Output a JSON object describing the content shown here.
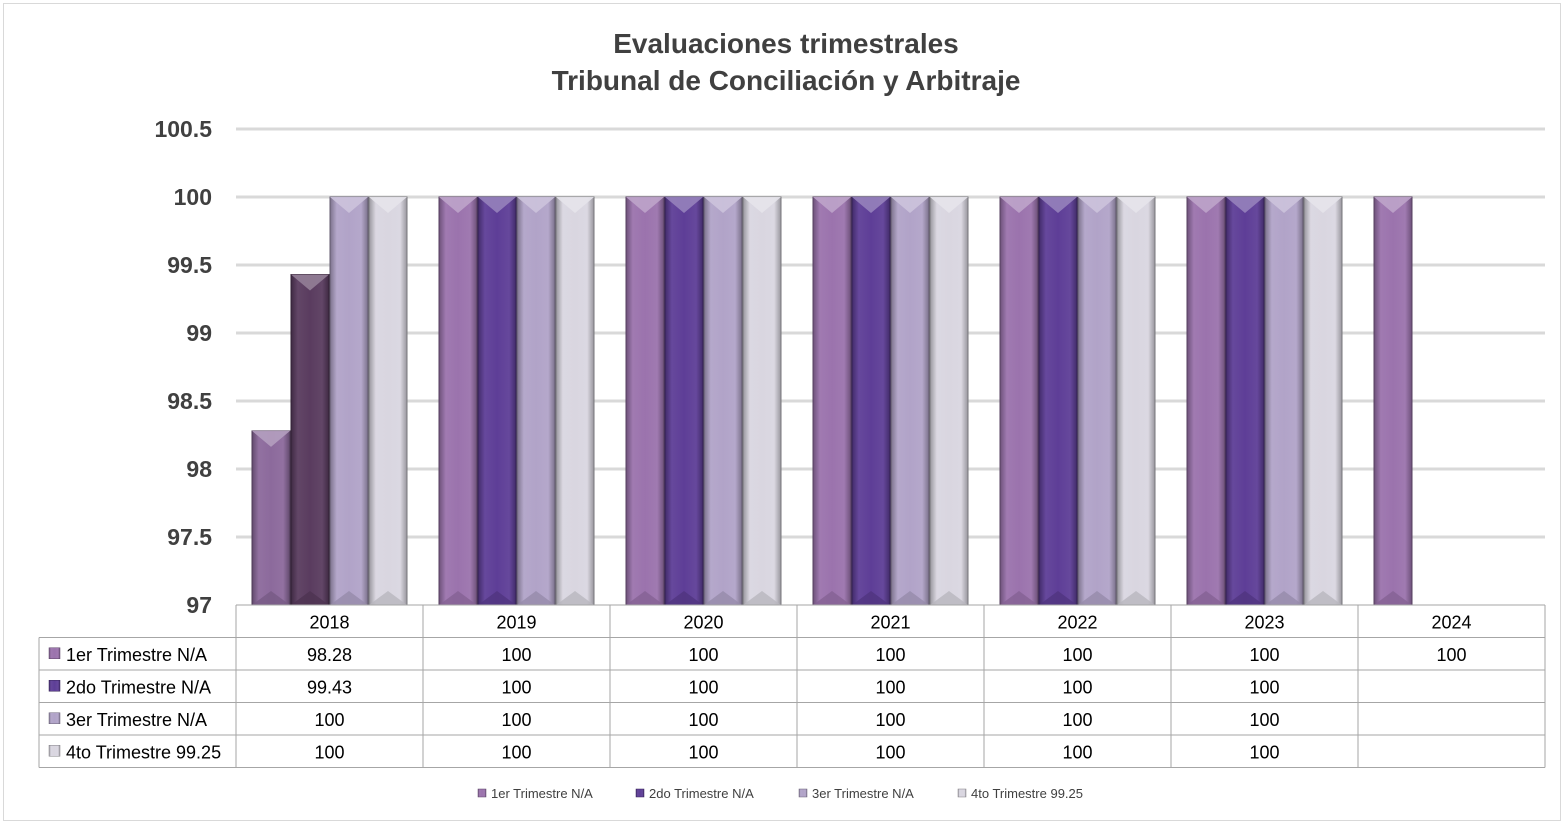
{
  "chart_data": {
    "type": "bar",
    "title": "Evaluaciones trimestrales",
    "subtitle": "Tribunal de Conciliación y Arbitraje",
    "categories": [
      "2018",
      "2019",
      "2020",
      "2021",
      "2022",
      "2023",
      "2024"
    ],
    "series": [
      {
        "name": "1er Trimestre N/A",
        "values": [
          98.28,
          100,
          100,
          100,
          100,
          100,
          100
        ],
        "color": "#9b73ad"
      },
      {
        "name": "2do Trimestre N/A",
        "values": [
          99.43,
          100,
          100,
          100,
          100,
          100,
          null
        ],
        "color": "#5e3e97"
      },
      {
        "name": "3er Trimestre N/A",
        "values": [
          100,
          100,
          100,
          100,
          100,
          100,
          null
        ],
        "color": "#b1a3c8"
      },
      {
        "name": "4to Trimestre 99.25",
        "values": [
          100,
          100,
          100,
          100,
          100,
          100,
          null
        ],
        "color": "#d9d6e0"
      }
    ],
    "first_series_color_2018": "#8c6a9c",
    "second_series_color_2018": "#5a3c5f",
    "ylim": [
      97,
      100.5
    ],
    "yticks": [
      "97",
      "97.5",
      "98",
      "98.5",
      "99",
      "99.5",
      "100",
      "100.5"
    ],
    "table": {
      "rows": [
        [
          "98.28",
          "100",
          "100",
          "100",
          "100",
          "100",
          "100"
        ],
        [
          "99.43",
          "100",
          "100",
          "100",
          "100",
          "100",
          ""
        ],
        [
          "100",
          "100",
          "100",
          "100",
          "100",
          "100",
          ""
        ],
        [
          "100",
          "100",
          "100",
          "100",
          "100",
          "100",
          ""
        ]
      ]
    },
    "grid": true,
    "legend_position": "bottom",
    "data_table": true
  }
}
